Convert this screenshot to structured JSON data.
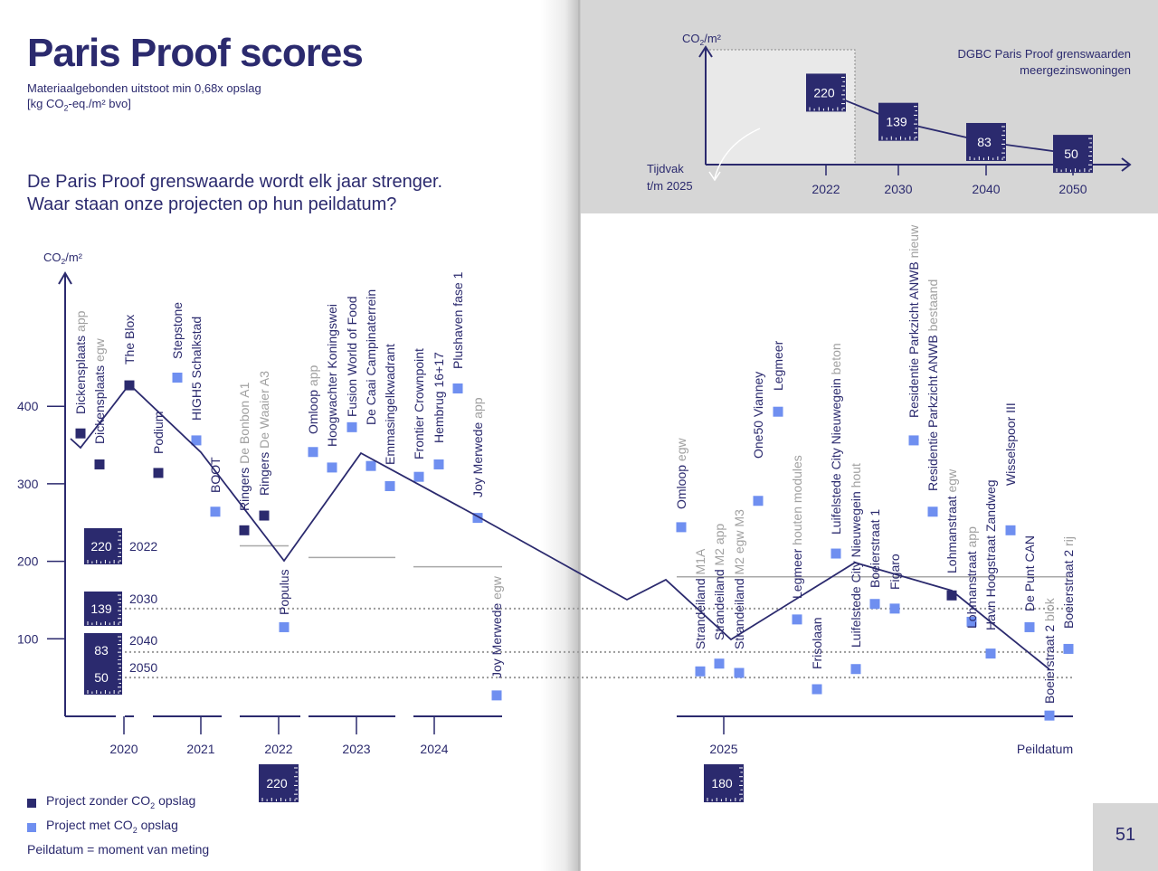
{
  "header": {
    "title": "Paris Proof scores",
    "subtitle_line1": "Materiaalgebonden uitstoot min 0,68x opslag",
    "subtitle_line2_pre": "[kg CO",
    "subtitle_line2_sub": "2",
    "subtitle_line2_post": "-eq./m² bvo]",
    "question_line1": "De Paris Proof grenswaarde wordt elk jaar strenger.",
    "question_line2": "Waar staan onze projecten op hun peildatum?"
  },
  "legend": {
    "without_pre": "Project zonder CO",
    "without_sub": "2",
    "without_post": " opslag",
    "with_pre": "Project met CO",
    "with_sub": "2",
    "with_post": " opslag",
    "note": "Peildatum = moment van meting"
  },
  "page_number": "51",
  "colors": {
    "navy": "#2b2a6e",
    "light_blue": "#6f8ff0",
    "grey": "#a8a8a8",
    "panel": "#d6d6d6"
  },
  "chart_data": [
    {
      "type": "scatter",
      "ylabel_pre": "CO",
      "ylabel_sub": "2",
      "ylabel_post": "/m²",
      "xlabel_end": "Peildatum",
      "yticks": [
        100,
        200,
        300,
        400
      ],
      "ylim": [
        10,
        465
      ],
      "year_labels": [
        "2020",
        "2021",
        "2022",
        "2023",
        "2024",
        "2025"
      ],
      "limit_boxes": [
        {
          "value": "220",
          "label": "2022"
        },
        {
          "value": "139",
          "label": "2030"
        },
        {
          "value": "83",
          "label": "2040"
        },
        {
          "value": "50",
          "label": "2050"
        }
      ],
      "reference_lines": [
        {
          "label": "2030",
          "value": 139
        },
        {
          "label": "2040",
          "value": 83
        },
        {
          "label": "2050",
          "value": 50
        }
      ],
      "period_limits": [
        {
          "period": "2022",
          "value": 220
        },
        {
          "period": "2023",
          "value": 205
        },
        {
          "period": "2024",
          "value": 193
        },
        {
          "period": "2025",
          "value": 180
        }
      ],
      "period_badges": [
        {
          "period": "2022",
          "value": "220"
        },
        {
          "period": "2025",
          "value": "180"
        }
      ],
      "projects": [
        {
          "name": "Dickensplaats",
          "variant": "app",
          "value": 365,
          "co2_storage": false
        },
        {
          "name": "Dickensplaats",
          "variant": "egw",
          "value": 325,
          "co2_storage": false
        },
        {
          "name": "The Blox",
          "variant": "",
          "value": 427,
          "co2_storage": false
        },
        {
          "name": "Podium",
          "variant": "",
          "value": 314,
          "co2_storage": false
        },
        {
          "name": "Stepstone",
          "variant": "",
          "value": 437,
          "co2_storage": true
        },
        {
          "name": "HIGH5 Schalkstad",
          "variant": "",
          "value": 356,
          "co2_storage": true
        },
        {
          "name": "BOOT",
          "variant": "",
          "value": 264,
          "co2_storage": true
        },
        {
          "name": "Ringers",
          "variant": "De Bonbon A1",
          "value": 240,
          "co2_storage": false
        },
        {
          "name": "Ringers",
          "variant": "De Waaier A3",
          "value": 259,
          "co2_storage": false
        },
        {
          "name": "Populus",
          "variant": "",
          "value": 115,
          "co2_storage": true
        },
        {
          "name": "Omloop",
          "variant": "app",
          "value": 341,
          "co2_storage": true
        },
        {
          "name": "Hoogwachter Koningswei",
          "variant": "",
          "value": 321,
          "co2_storage": true
        },
        {
          "name": "Fusion World of Food",
          "variant": "",
          "value": 373,
          "co2_storage": true
        },
        {
          "name": "De Caai Campinaterrein",
          "variant": "",
          "value": 323,
          "co2_storage": true
        },
        {
          "name": "Emmasingelkwadrant",
          "variant": "",
          "value": 297,
          "co2_storage": true
        },
        {
          "name": "Frontier Crownpoint",
          "variant": "",
          "value": 309,
          "co2_storage": true
        },
        {
          "name": "Hembrug 16+17",
          "variant": "",
          "value": 325,
          "co2_storage": true
        },
        {
          "name": "Plushaven fase 1",
          "variant": "",
          "value": 423,
          "co2_storage": true
        },
        {
          "name": "Joy Merwede",
          "variant": "app",
          "value": 256,
          "co2_storage": true
        },
        {
          "name": "Joy Merwede",
          "variant": "egw",
          "value": 27,
          "co2_storage": true
        },
        {
          "name": "Omloop",
          "variant": "egw",
          "value": 244,
          "co2_storage": true
        },
        {
          "name": "Strandeiland",
          "variant": "M1A",
          "value": 58,
          "co2_storage": true
        },
        {
          "name": "Strandeiland",
          "variant": "M2 app",
          "value": 68,
          "co2_storage": true
        },
        {
          "name": "Strandeiland",
          "variant": "M2 egw M3",
          "value": 56,
          "co2_storage": true
        },
        {
          "name": "One50 Vianney",
          "variant": "",
          "value": 278,
          "co2_storage": true
        },
        {
          "name": "Legmeer",
          "variant": "",
          "value": 393,
          "co2_storage": true
        },
        {
          "name": "Legmeer",
          "variant": "houten modules",
          "value": 125,
          "co2_storage": true
        },
        {
          "name": "Frisolaan",
          "variant": "",
          "value": 35,
          "co2_storage": true
        },
        {
          "name": "Luifelstede City Nieuwegein",
          "variant": "beton",
          "value": 210,
          "co2_storage": true
        },
        {
          "name": "Luifelstede City Nieuwegein",
          "variant": "hout",
          "value": 61,
          "co2_storage": true
        },
        {
          "name": "Boeierstraat 1",
          "variant": "",
          "value": 145,
          "co2_storage": true
        },
        {
          "name": "Figaro",
          "variant": "",
          "value": 139,
          "co2_storage": true
        },
        {
          "name": "Residentie Parkzicht ANWB",
          "variant": "nieuw",
          "value": 356,
          "co2_storage": true
        },
        {
          "name": "Residentie Parkzicht ANWB",
          "variant": "bestaand",
          "value": 264,
          "co2_storage": true
        },
        {
          "name": "Lohmanstraat",
          "variant": "egw",
          "value": 156,
          "co2_storage": false
        },
        {
          "name": "Lohmanstraat",
          "variant": "app",
          "value": 122,
          "co2_storage": true
        },
        {
          "name": "Havn Hoogstraat Zandweg",
          "variant": "",
          "value": 81,
          "co2_storage": true
        },
        {
          "name": "Wisselspoor III",
          "variant": "",
          "value": 240,
          "co2_storage": true
        },
        {
          "name": "De Punt CAN",
          "variant": "",
          "value": 115,
          "co2_storage": true
        },
        {
          "name": "Boeierstraat 2",
          "variant": "blok",
          "value": 1,
          "co2_storage": true
        },
        {
          "name": "Boeierstraat 2",
          "variant": "rij",
          "value": 87,
          "co2_storage": true
        }
      ]
    },
    {
      "type": "line",
      "title_line1": "DGBC Paris Proof grenswaarden",
      "title_line2": "meergezinswoningen",
      "ylabel_pre": "CO",
      "ylabel_sub": "2",
      "ylabel_post": "/m²",
      "x": [
        "2022",
        "2030",
        "2040",
        "2050"
      ],
      "values": [
        220,
        139,
        83,
        50
      ],
      "value_labels": [
        "220",
        "139",
        "83",
        "50"
      ],
      "annotation_line1": "Tijdvak",
      "annotation_line2": "t/m 2025"
    }
  ]
}
